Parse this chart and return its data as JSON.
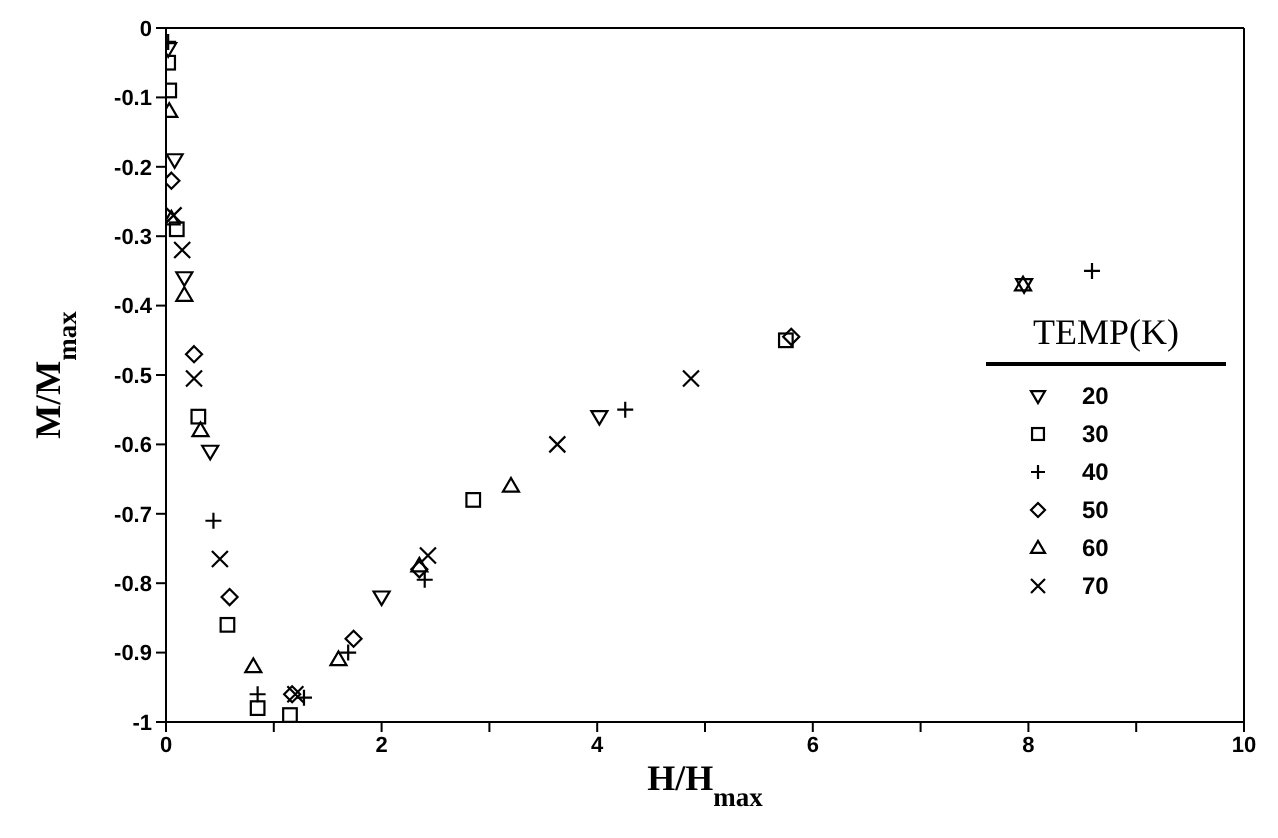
{
  "chart_data": {
    "type": "scatter",
    "xlabel": "H/H$_{max}$",
    "ylabel": "M/M$_{max}$",
    "legend_title": "TEMP(K)",
    "legend": "right",
    "grid": false,
    "xlim": [
      0,
      10
    ],
    "xticks": [
      0,
      {
        "value": 1,
        "label": null
      },
      2,
      {
        "value": 3,
        "label": null
      },
      4,
      {
        "value": 5,
        "label": null
      },
      6,
      {
        "value": 7,
        "label": null
      },
      8,
      {
        "value": 9,
        "label": null
      },
      10
    ],
    "ylim": [
      -1,
      0
    ],
    "yticks": [
      0,
      -0.1,
      -0.2,
      -0.3,
      -0.4,
      -0.5,
      -0.6,
      -0.7,
      -0.8,
      -0.9,
      -1
    ],
    "series": [
      {
        "name": "20",
        "color": "#000000",
        "marker": "triangle-down",
        "x": [
          0.02,
          0.08,
          0.17,
          0.41,
          2.0,
          4.02,
          7.96
        ],
        "values": [
          -0.03,
          -0.19,
          -0.36,
          -0.61,
          -0.82,
          -0.56,
          -0.37
        ]
      },
      {
        "name": "30",
        "color": "#000000",
        "marker": "square",
        "x": [
          0.02,
          0.03,
          0.1,
          0.3,
          0.57,
          0.85,
          1.15,
          2.85,
          5.75
        ],
        "values": [
          -0.05,
          -0.09,
          -0.29,
          -0.56,
          -0.86,
          -0.98,
          -0.99,
          -0.68,
          -0.45
        ]
      },
      {
        "name": "40",
        "color": "#000000",
        "marker": "plus",
        "x": [
          0.02,
          0.05,
          0.44,
          0.85,
          1.28,
          1.69,
          2.4,
          4.26,
          8.59
        ],
        "values": [
          -0.02,
          null,
          -0.71,
          -0.96,
          -0.965,
          -0.9,
          -0.795,
          -0.55,
          -0.35
        ]
      },
      {
        "name": "50",
        "color": "#000000",
        "marker": "diamond",
        "x": [
          0.05,
          0.26,
          0.59,
          1.17,
          1.74,
          2.35,
          5.8
        ],
        "values": [
          -0.22,
          -0.47,
          -0.82,
          -0.96,
          -0.88,
          -0.78,
          -0.445
        ]
      },
      {
        "name": "60",
        "color": "#000000",
        "marker": "triangle",
        "x": [
          0.03,
          0.05,
          0.17,
          0.32,
          0.81,
          1.6,
          2.35,
          3.2,
          7.95
        ],
        "values": [
          -0.12,
          -0.275,
          -0.385,
          -0.58,
          -0.92,
          -0.91,
          -0.775,
          -0.66,
          -0.37
        ]
      },
      {
        "name": "70",
        "color": "#000000",
        "marker": "cross",
        "x": [
          0.07,
          0.15,
          0.26,
          0.5,
          1.2,
          2.43,
          3.63,
          4.87
        ],
        "values": [
          -0.27,
          -0.32,
          -0.505,
          -0.765,
          -0.96,
          -0.76,
          -0.6,
          -0.505
        ]
      }
    ]
  }
}
